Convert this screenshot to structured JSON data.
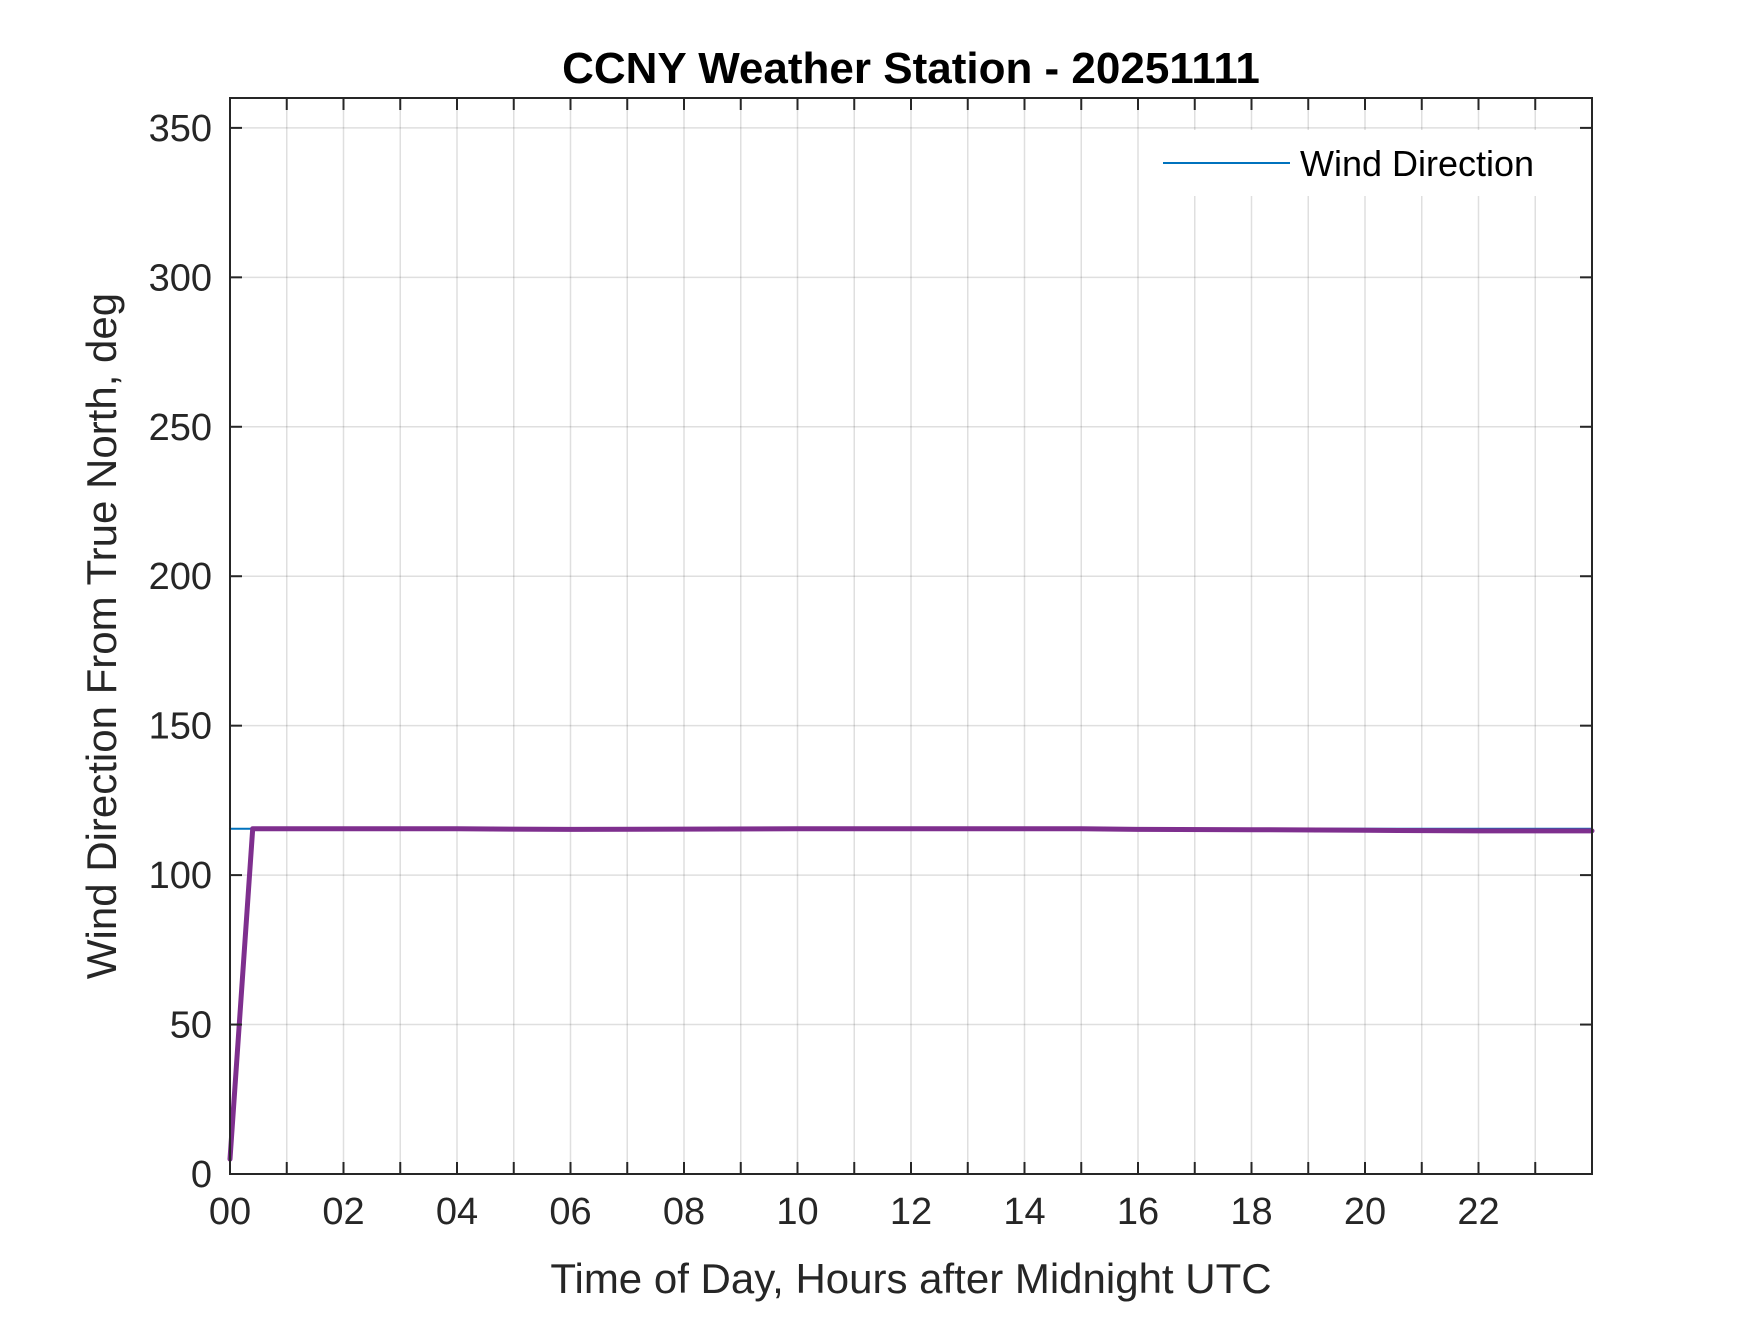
{
  "chart_data": {
    "type": "line",
    "title": "CCNY Weather Station - 20251111",
    "xlabel": "Time of Day, Hours after Midnight UTC",
    "ylabel": "Wind Direction From True North, deg",
    "xlim": [
      0,
      24
    ],
    "ylim": [
      0,
      360
    ],
    "x_ticks": [
      0,
      2,
      4,
      6,
      8,
      10,
      12,
      14,
      16,
      18,
      20,
      22
    ],
    "x_tick_labels": [
      "00",
      "02",
      "04",
      "06",
      "08",
      "10",
      "12",
      "14",
      "16",
      "18",
      "20",
      "22"
    ],
    "x_minor_ticks": [
      1,
      3,
      5,
      7,
      9,
      11,
      13,
      15,
      17,
      19,
      21,
      23
    ],
    "y_ticks": [
      0,
      50,
      100,
      150,
      200,
      250,
      300,
      350
    ],
    "y_tick_labels": [
      "0",
      "50",
      "100",
      "150",
      "200",
      "250",
      "300",
      "350"
    ],
    "grid": true,
    "legend": {
      "placement": "top-right",
      "entries": [
        "Wind Direction"
      ]
    },
    "series": [
      {
        "name": "Wind Direction",
        "color": "#0072BD",
        "x": [
          0,
          24
        ],
        "values": [
          115.5,
          115.5
        ]
      },
      {
        "color": "#7E2F8E",
        "x": [
          0,
          0.4,
          2,
          4,
          6,
          8,
          10,
          12,
          14,
          15,
          16,
          18,
          20,
          22,
          24
        ],
        "values": [
          5,
          115.5,
          115.5,
          115.5,
          115.3,
          115.4,
          115.5,
          115.5,
          115.5,
          115.5,
          115.3,
          115.2,
          115.0,
          114.8,
          114.8
        ]
      }
    ]
  }
}
